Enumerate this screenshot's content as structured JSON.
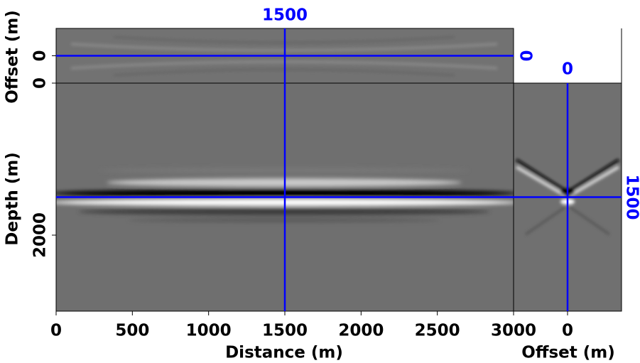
{
  "chart_data": {
    "type": "cube",
    "x_label": "Distance (m)",
    "depth_label": "Depth (m)",
    "offset_label": "Offset (m)",
    "xlim": [
      0,
      3000
    ],
    "xticks": [
      0,
      500,
      1000,
      1500,
      2000,
      2500,
      3000
    ],
    "ylim": [
      0,
      3000
    ],
    "yticks": [
      0,
      2000
    ],
    "offsetlim": [
      -350,
      350
    ],
    "offset_ticks": [
      0
    ],
    "slice": {
      "x": 1500,
      "depth": 1500,
      "offset": 0
    },
    "line_color": "#0000ff"
  }
}
